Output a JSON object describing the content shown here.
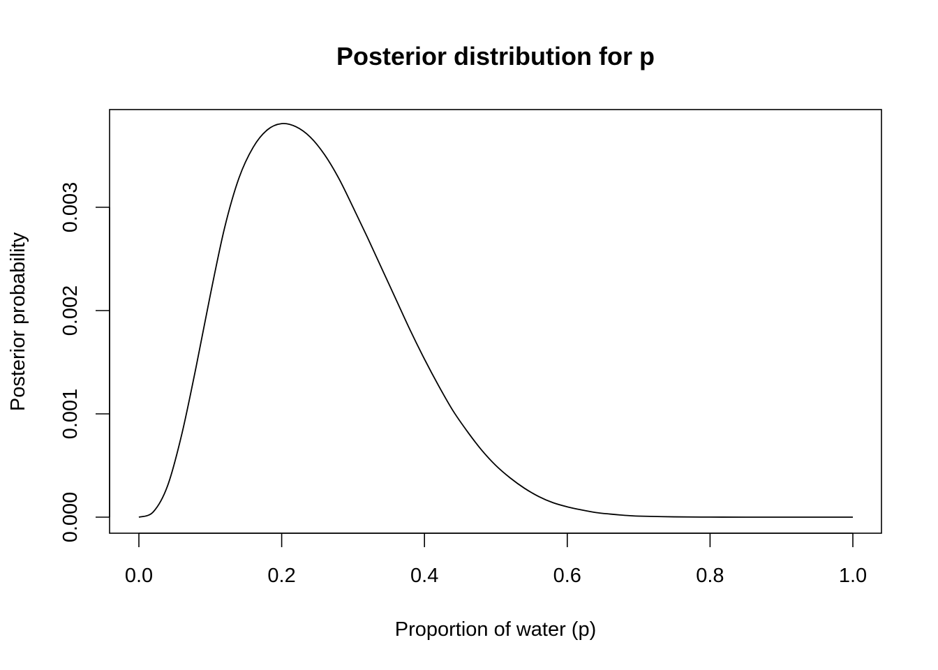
{
  "chart_data": {
    "type": "line",
    "title": "Posterior distribution for p",
    "xlabel": "Proportion of water (p)",
    "ylabel": "Posterior probability",
    "xlim": [
      0.0,
      1.0
    ],
    "ylim": [
      0.0,
      0.0038
    ],
    "x_ticks": [
      0.0,
      0.2,
      0.4,
      0.6,
      0.8,
      1.0
    ],
    "x_tick_labels": [
      "0.0",
      "0.2",
      "0.4",
      "0.6",
      "0.8",
      "1.0"
    ],
    "y_ticks": [
      0.0,
      0.001,
      0.002,
      0.003
    ],
    "y_tick_labels": [
      "0.000",
      "0.001",
      "0.002",
      "0.003"
    ],
    "grid": false,
    "legend": "none",
    "series": [
      {
        "x": [
          0.0,
          0.02,
          0.04,
          0.06,
          0.08,
          0.1,
          0.12,
          0.14,
          0.16,
          0.18,
          0.2,
          0.22,
          0.24,
          0.26,
          0.28,
          0.3,
          0.32,
          0.34,
          0.36,
          0.38,
          0.4,
          0.42,
          0.44,
          0.46,
          0.48,
          0.5,
          0.52,
          0.54,
          0.56,
          0.58,
          0.6,
          0.62,
          0.64,
          0.66,
          0.68,
          0.7,
          0.75,
          0.8,
          0.85,
          0.9,
          0.95,
          1.0
        ],
        "values": [
          0.0,
          5e-05,
          0.0003,
          0.0008,
          0.00145,
          0.00215,
          0.0028,
          0.00328,
          0.00358,
          0.00375,
          0.00381,
          0.00378,
          0.00368,
          0.00351,
          0.00328,
          0.003,
          0.00271,
          0.00241,
          0.00211,
          0.00181,
          0.00153,
          0.00127,
          0.00103,
          0.00083,
          0.00065,
          0.0005,
          0.00038,
          0.00028,
          0.0002,
          0.00014,
          0.0001,
          7e-05,
          4.5e-05,
          3e-05,
          1.8e-05,
          1e-05,
          3e-06,
          7e-07,
          1e-07,
          0.0,
          0.0,
          0.0
        ]
      }
    ]
  }
}
